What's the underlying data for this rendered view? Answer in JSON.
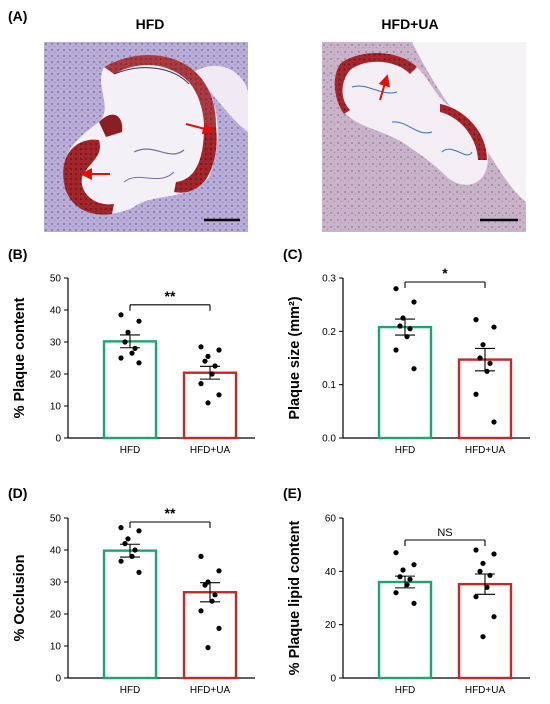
{
  "panel_a": {
    "label": "(A)",
    "images": [
      {
        "title": "HFD"
      },
      {
        "title": "HFD+UA"
      }
    ]
  },
  "colors": {
    "hfd": "#1aa672",
    "hfd_ua": "#c62828",
    "dot": "#000000",
    "arrow": "#e01010"
  },
  "chart_data": [
    {
      "panel": "(B)",
      "type": "bar",
      "categories": [
        "HFD",
        "HFD+UA"
      ],
      "values": [
        30.2,
        20.4
      ],
      "errors": [
        2.0,
        2.0
      ],
      "points": [
        [
          38.5,
          36.5,
          33.0,
          30.0,
          28.0,
          26.5,
          25.0,
          23.5
        ],
        [
          28.5,
          27.5,
          25.5,
          24.0,
          22.5,
          20.0,
          17.0,
          13.5,
          11.0
        ]
      ],
      "ylabel": "% Plaque content",
      "ylim": [
        0,
        50
      ],
      "yticks": [
        0,
        10,
        20,
        30,
        40,
        50
      ],
      "significance": "**"
    },
    {
      "panel": "(C)",
      "type": "bar",
      "categories": [
        "HFD",
        "HFD+UA"
      ],
      "values": [
        0.208,
        0.147
      ],
      "errors": [
        0.015,
        0.021
      ],
      "points": [
        [
          0.28,
          0.255,
          0.225,
          0.21,
          0.205,
          0.19,
          0.165,
          0.13
        ],
        [
          0.222,
          0.208,
          0.175,
          0.15,
          0.14,
          0.125,
          0.082,
          0.03
        ]
      ],
      "ylabel": "Plaque size (mm²)",
      "ylim": [
        0,
        0.3
      ],
      "yticks": [
        "0.0",
        "0.1",
        "0.2",
        "0.3"
      ],
      "significance": "*"
    },
    {
      "panel": "(D)",
      "type": "bar",
      "categories": [
        "HFD",
        "HFD+UA"
      ],
      "values": [
        39.8,
        26.8
      ],
      "errors": [
        2.0,
        3.0
      ],
      "points": [
        [
          47.0,
          46.0,
          43.5,
          42.0,
          40.0,
          38.0,
          36.5,
          33.0
        ],
        [
          38.0,
          33.5,
          30.0,
          29.0,
          26.0,
          24.0,
          21.0,
          15.5,
          9.5
        ]
      ],
      "ylabel": "% Occlusion",
      "ylim": [
        0,
        50
      ],
      "yticks": [
        0,
        10,
        20,
        30,
        40,
        50
      ],
      "significance": "**"
    },
    {
      "panel": "(E)",
      "type": "bar",
      "categories": [
        "HFD",
        "HFD+UA"
      ],
      "values": [
        36.0,
        35.2
      ],
      "errors": [
        2.2,
        3.8
      ],
      "points": [
        [
          47.0,
          42.5,
          40.5,
          38.0,
          37.0,
          35.0,
          32.0,
          28.0
        ],
        [
          48.0,
          46.5,
          43.0,
          40.0,
          38.5,
          34.0,
          30.5,
          23.0,
          15.5
        ]
      ],
      "ylabel": "% Plaque lipid content",
      "ylim": [
        0,
        60
      ],
      "yticks": [
        0,
        20,
        40,
        60
      ],
      "significance": "NS"
    }
  ]
}
